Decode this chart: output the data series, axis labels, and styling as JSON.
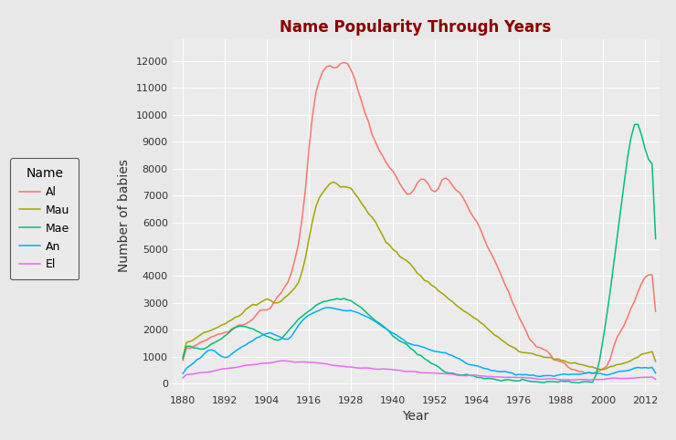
{
  "title": "Name Popularity Through Years",
  "xlabel": "Year",
  "ylabel": "Number of babies",
  "title_color": "#8B0000",
  "bg_color": "#EBEBEB",
  "panel_bg": "#EBEBEB",
  "grid_color": "#FFFFFF",
  "outer_bg": "#E8E8E8",
  "legend_title": "Name",
  "names": [
    "Al",
    "Mau",
    "Mae",
    "An",
    "El"
  ],
  "colors": [
    "#F8766D",
    "#A3A500",
    "#00BF7D",
    "#00B0F6",
    "#E76BF3"
  ],
  "x_ticks": [
    1880,
    1892,
    1904,
    1916,
    1928,
    1940,
    1952,
    1964,
    1976,
    1988,
    2000,
    2012
  ],
  "y_ticks": [
    0,
    1000,
    2000,
    3000,
    4000,
    5000,
    6000,
    7000,
    8000,
    9000,
    10000,
    11000,
    12000
  ],
  "ylim": [
    -300,
    12800
  ],
  "xlim": [
    1877,
    2016
  ]
}
